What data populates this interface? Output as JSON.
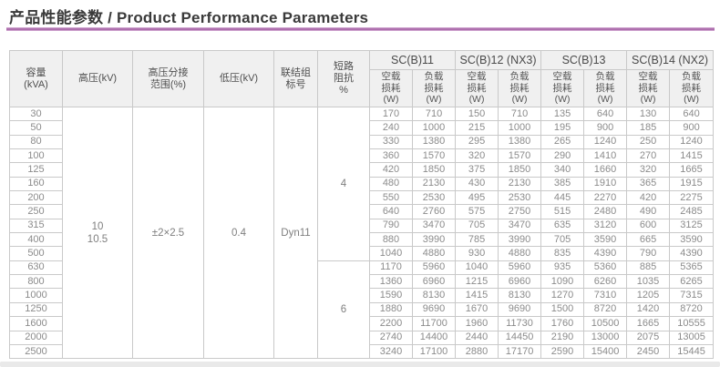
{
  "page": {
    "title": "产品性能参数 / Product Performance Parameters",
    "accent_color": "#a765a7"
  },
  "table": {
    "left_headers": [
      {
        "id": "capacity",
        "label": "容量\n(kVA)"
      },
      {
        "id": "hv",
        "label": "高压(kV)"
      },
      {
        "id": "tap-range",
        "label": "高压分接\n范围(%)"
      },
      {
        "id": "lv",
        "label": "低压(kV)"
      },
      {
        "id": "vector-group",
        "label": "联结组\n标号"
      },
      {
        "id": "impedance",
        "label": "短路\n阻抗\n%"
      }
    ],
    "groups": [
      {
        "id": "scb11",
        "label": "SC(B)11"
      },
      {
        "id": "scb12",
        "label": "SC(B)12 (NX3)"
      },
      {
        "id": "scb13",
        "label": "SC(B)13"
      },
      {
        "id": "scb14",
        "label": "SC(B)14 (NX2)"
      }
    ],
    "loss_headers": {
      "no_load": "空载\n损耗\n(W)",
      "load": "负载\n损耗\n(W)"
    },
    "merged": {
      "hv": "10\n10.5",
      "tap": "±2×2.5",
      "lv": "0.4",
      "vector": "Dyn11"
    },
    "impedance_blocks": [
      {
        "value": "4",
        "span": 11
      },
      {
        "value": "6",
        "span": 7
      }
    ],
    "rows": [
      {
        "capacity": "30",
        "values": [
          "170",
          "710",
          "150",
          "710",
          "135",
          "640",
          "130",
          "640"
        ]
      },
      {
        "capacity": "50",
        "values": [
          "240",
          "1000",
          "215",
          "1000",
          "195",
          "900",
          "185",
          "900"
        ]
      },
      {
        "capacity": "80",
        "values": [
          "330",
          "1380",
          "295",
          "1380",
          "265",
          "1240",
          "250",
          "1240"
        ]
      },
      {
        "capacity": "100",
        "values": [
          "360",
          "1570",
          "320",
          "1570",
          "290",
          "1410",
          "270",
          "1415"
        ]
      },
      {
        "capacity": "125",
        "values": [
          "420",
          "1850",
          "375",
          "1850",
          "340",
          "1660",
          "320",
          "1665"
        ]
      },
      {
        "capacity": "160",
        "values": [
          "480",
          "2130",
          "430",
          "2130",
          "385",
          "1910",
          "365",
          "1915"
        ]
      },
      {
        "capacity": "200",
        "values": [
          "550",
          "2530",
          "495",
          "2530",
          "445",
          "2270",
          "420",
          "2275"
        ]
      },
      {
        "capacity": "250",
        "values": [
          "640",
          "2760",
          "575",
          "2750",
          "515",
          "2480",
          "490",
          "2485"
        ]
      },
      {
        "capacity": "315",
        "values": [
          "790",
          "3470",
          "705",
          "3470",
          "635",
          "3120",
          "600",
          "3125"
        ]
      },
      {
        "capacity": "400",
        "values": [
          "880",
          "3990",
          "785",
          "3990",
          "705",
          "3590",
          "665",
          "3590"
        ]
      },
      {
        "capacity": "500",
        "values": [
          "1040",
          "4880",
          "930",
          "4880",
          "835",
          "4390",
          "790",
          "4390"
        ]
      },
      {
        "capacity": "630",
        "values": [
          "1170",
          "5960",
          "1040",
          "5960",
          "935",
          "5360",
          "885",
          "5365"
        ]
      },
      {
        "capacity": "800",
        "values": [
          "1360",
          "6960",
          "1215",
          "6960",
          "1090",
          "6260",
          "1035",
          "6265"
        ]
      },
      {
        "capacity": "1000",
        "values": [
          "1590",
          "8130",
          "1415",
          "8130",
          "1270",
          "7310",
          "1205",
          "7315"
        ]
      },
      {
        "capacity": "1250",
        "values": [
          "1880",
          "9690",
          "1670",
          "9690",
          "1500",
          "8720",
          "1420",
          "8720"
        ]
      },
      {
        "capacity": "1600",
        "values": [
          "2200",
          "11700",
          "1960",
          "11730",
          "1760",
          "10500",
          "1665",
          "10555"
        ]
      },
      {
        "capacity": "2000",
        "values": [
          "2740",
          "14400",
          "2440",
          "14450",
          "2190",
          "13000",
          "2075",
          "13005"
        ]
      },
      {
        "capacity": "2500",
        "values": [
          "3240",
          "17100",
          "2880",
          "17170",
          "2590",
          "15400",
          "2450",
          "15445"
        ]
      }
    ]
  }
}
